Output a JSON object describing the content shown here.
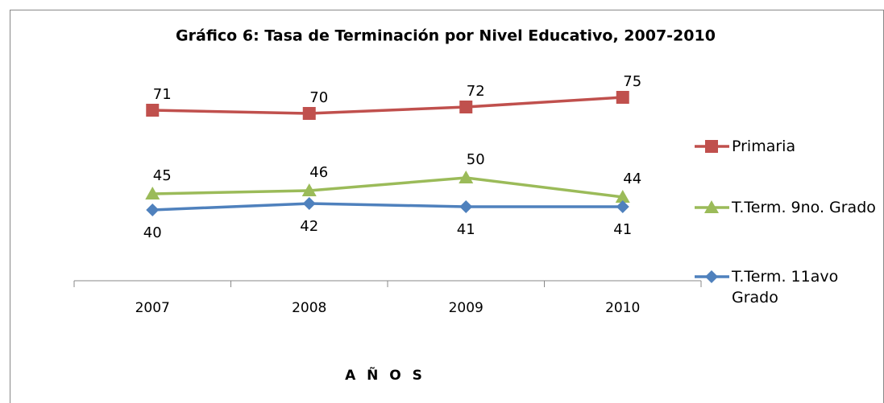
{
  "chart_data": {
    "type": "line",
    "title": "Gráfico 6: Tasa de Terminación por Nivel Educativo, 2007-2010",
    "x_label": "A Ñ O S",
    "categories": [
      "2007",
      "2008",
      "2009",
      "2010"
    ],
    "ylim": [
      18,
      80
    ],
    "legend": "right",
    "series": [
      {
        "name": "Primaria",
        "color": "#c0504d",
        "marker": "square",
        "values": [
          71,
          70,
          72,
          75
        ]
      },
      {
        "name": "T.Term. 9no. Grado",
        "color": "#9bbb59",
        "marker": "triangle",
        "values": [
          45,
          46,
          50,
          44
        ]
      },
      {
        "name": "T.Term. 11avo Grado",
        "color": "#4f81bd",
        "marker": "diamond",
        "values": [
          40,
          42,
          41,
          41
        ]
      }
    ]
  }
}
